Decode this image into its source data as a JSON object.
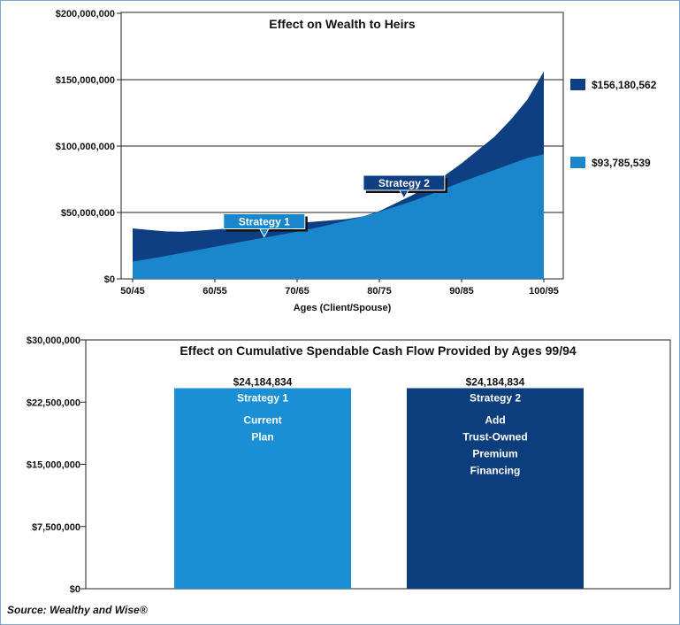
{
  "colors": {
    "dark": "#0d3f82",
    "light": "#1a86cc",
    "light_bar": "#1b8fd6",
    "dark_bar": "#0c3d7c"
  },
  "chart_data": [
    {
      "type": "area",
      "title": "Effect on Wealth to Heirs",
      "xlabel": "Ages (Client/Spouse)",
      "ylabel": "",
      "x_tick_labels": [
        "50/45",
        "60/55",
        "70/65",
        "80/75",
        "90/85",
        "100/95"
      ],
      "y_tick_labels": [
        "$0",
        "$50,000,000",
        "$100,000,000",
        "$150,000,000",
        "$200,000,000"
      ],
      "ylim": [
        0,
        200000000
      ],
      "grid": true,
      "x": [
        50,
        52,
        54,
        56,
        58,
        60,
        62,
        64,
        66,
        68,
        70,
        72,
        74,
        76,
        78,
        80,
        82,
        84,
        86,
        88,
        90,
        92,
        94,
        96,
        98,
        100
      ],
      "series": [
        {
          "name": "Strategy 1",
          "values": [
            13000000,
            15000000,
            17200000,
            19500000,
            21800000,
            24200000,
            26500000,
            28800000,
            31000000,
            33300000,
            35600000,
            38000000,
            40800000,
            43800000,
            47000000,
            50500000,
            54500000,
            58500000,
            63000000,
            68000000,
            73000000,
            77500000,
            82000000,
            86500000,
            91000000,
            93785539
          ]
        },
        {
          "name": "Strategy 2",
          "values": [
            38000000,
            36800000,
            35700000,
            35500000,
            36300000,
            37200000,
            38000000,
            39200000,
            40200000,
            41200000,
            42200000,
            43000000,
            44000000,
            45000000,
            47000000,
            51000000,
            57000000,
            63000000,
            70000000,
            78000000,
            87000000,
            97000000,
            107000000,
            120000000,
            135000000,
            156180562
          ]
        }
      ],
      "end_labels": [
        "$156,180,562",
        "$93,785,539"
      ],
      "callouts": [
        {
          "series": "Strategy 1",
          "text": "Strategy 1",
          "x": 66
        },
        {
          "series": "Strategy 2",
          "text": "Strategy 2",
          "x": 83
        }
      ]
    },
    {
      "type": "bar",
      "title": "Effect on Cumulative Spendable Cash Flow Provided by Ages 99/94",
      "xlabel": "",
      "ylabel": "",
      "y_tick_labels": [
        "$0",
        "$7,500,000",
        "$15,000,000",
        "$22,500,000",
        "$30,000,000"
      ],
      "ylim": [
        0,
        30000000
      ],
      "grid": false,
      "categories": [
        "Strategy 1",
        "Strategy 2"
      ],
      "values": [
        24184834,
        24184834
      ],
      "value_labels": [
        "$24,184,834",
        "$24,184,834"
      ],
      "bar_text": [
        [
          "Strategy 1",
          "Current",
          "Plan"
        ],
        [
          "Strategy 2",
          "Add",
          "Trust-Owned",
          "Premium",
          "Financing"
        ]
      ]
    }
  ],
  "source": "Source: Wealthy and Wise®"
}
